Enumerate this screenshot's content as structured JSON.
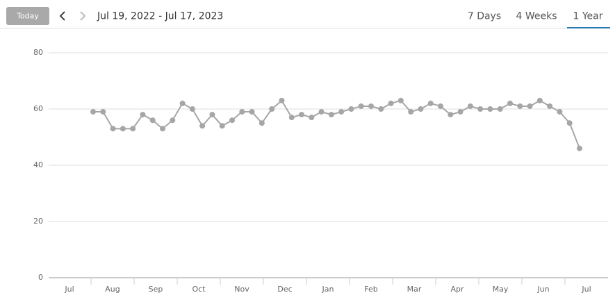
{
  "header": {
    "today_button": "Today",
    "date_range": "Jul 19, 2022 - Jul 17, 2023",
    "tabs": [
      "7 Days",
      "4 Weeks",
      "1 Year"
    ],
    "active_tab": 2
  },
  "chart_data": {
    "type": "line",
    "x_axis_labels": [
      "Jul",
      "Aug",
      "Sep",
      "Oct",
      "Nov",
      "Dec",
      "Jan",
      "Feb",
      "Mar",
      "Apr",
      "May",
      "Jun",
      "Jul"
    ],
    "series": [
      {
        "color": "#a6a6a6",
        "values": [
          59,
          59,
          53,
          53,
          53,
          58,
          56,
          53,
          56,
          62,
          60,
          54,
          58,
          54,
          56,
          59,
          59,
          55,
          60,
          63,
          57,
          58,
          57,
          59,
          58,
          59,
          60,
          61,
          61,
          60,
          62,
          63,
          59,
          60,
          62,
          61,
          58,
          59,
          61,
          60,
          60,
          60,
          62,
          61,
          61,
          63,
          61,
          59,
          55,
          46
        ]
      }
    ],
    "ylim": [
      0,
      80
    ],
    "yticks": [
      0,
      20,
      40,
      60,
      80
    ],
    "grid": true
  }
}
